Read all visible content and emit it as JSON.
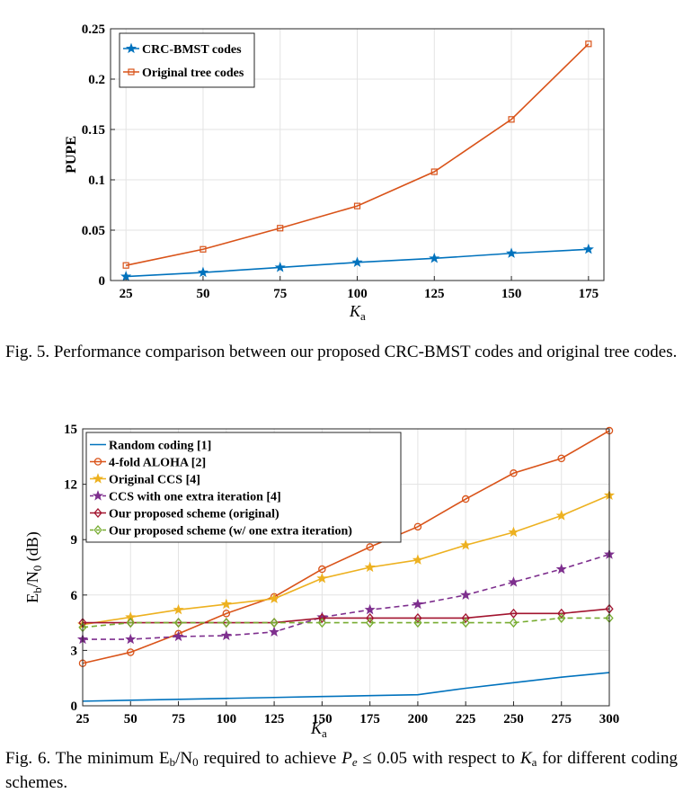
{
  "figure1": {
    "caption": "Fig. 5.   Performance comparison between our proposed CRC-BMST codes and original tree codes.",
    "chart_data": {
      "type": "line",
      "x": [
        25,
        50,
        75,
        100,
        125,
        150,
        175
      ],
      "xlabel": "K_a",
      "ylabel": "PUPE",
      "xlim": [
        20,
        180
      ],
      "ylim": [
        0,
        0.25
      ],
      "xticks": [
        "25",
        "50",
        "75",
        "100",
        "125",
        "150",
        "175"
      ],
      "yticks": [
        "0",
        "0.05",
        "0.1",
        "0.15",
        "0.2",
        "0.25"
      ],
      "grid": true,
      "legend_position": "top-left",
      "series": [
        {
          "name": "CRC-BMST codes",
          "color": "#0072BD",
          "marker": "star",
          "dashed": false,
          "values": [
            0.004,
            0.008,
            0.013,
            0.018,
            0.022,
            0.027,
            0.031
          ]
        },
        {
          "name": "Original tree codes",
          "color": "#D95319",
          "marker": "square",
          "dashed": false,
          "values": [
            0.015,
            0.031,
            0.052,
            0.074,
            0.108,
            0.16,
            0.235
          ]
        }
      ]
    }
  },
  "figure2": {
    "caption_prefix": "Fig. 6.   The minimum E",
    "caption_mid1": "/N",
    "caption_mid2": " required to achieve ",
    "caption_pe": "P",
    "caption_pe_sub": "e",
    "caption_mid3": " ≤ 0.05 with respect to ",
    "caption_k": "K",
    "caption_k_sub": "a",
    "caption_suffix": " for different coding schemes.",
    "sub_b": "b",
    "sub_0": "0",
    "chart_data": {
      "type": "line",
      "x": [
        25,
        50,
        75,
        100,
        125,
        150,
        175,
        200,
        225,
        250,
        275,
        300
      ],
      "xlabel": "K_a",
      "ylabel": "Eb/N0 (dB)",
      "xlim": [
        25,
        300
      ],
      "ylim": [
        0,
        15
      ],
      "xticks": [
        "25",
        "50",
        "75",
        "100",
        "125",
        "150",
        "175",
        "200",
        "225",
        "250",
        "275",
        "300"
      ],
      "yticks": [
        "0",
        "3",
        "6",
        "9",
        "12",
        "15"
      ],
      "grid": true,
      "legend_position": "top-left",
      "series": [
        {
          "name": "Random coding [1]",
          "color": "#0072BD",
          "marker": "none",
          "dashed": false,
          "values": [
            0.25,
            0.3,
            0.35,
            0.4,
            0.45,
            0.5,
            0.55,
            0.6,
            0.95,
            1.25,
            1.55,
            1.8
          ]
        },
        {
          "name": "4-fold ALOHA [2]",
          "color": "#D95319",
          "marker": "circle",
          "dashed": false,
          "values": [
            2.3,
            2.9,
            3.9,
            5.0,
            5.9,
            7.4,
            8.6,
            9.7,
            11.2,
            12.6,
            13.4,
            14.9
          ]
        },
        {
          "name": "Original CCS [4]",
          "color": "#EDB120",
          "marker": "star",
          "dashed": false,
          "values": [
            4.4,
            4.8,
            5.2,
            5.5,
            5.8,
            6.9,
            7.5,
            7.9,
            8.7,
            9.4,
            10.3,
            11.4
          ]
        },
        {
          "name": "CCS with one extra iteration [4]",
          "color": "#7E2F8E",
          "marker": "star",
          "dashed": true,
          "values": [
            3.6,
            3.6,
            3.75,
            3.8,
            4.0,
            4.8,
            5.2,
            5.5,
            6.0,
            6.7,
            7.4,
            8.2
          ]
        },
        {
          "name": "Our proposed scheme (original)",
          "color": "#A2142F",
          "marker": "diamond",
          "dashed": false,
          "values": [
            4.5,
            4.5,
            4.5,
            4.5,
            4.5,
            4.75,
            4.75,
            4.75,
            4.75,
            5.0,
            5.0,
            5.25
          ]
        },
        {
          "name": "Our proposed scheme (w/ one extra iteration)",
          "color": "#77AC30",
          "marker": "diamond",
          "dashed": true,
          "values": [
            4.25,
            4.5,
            4.5,
            4.5,
            4.5,
            4.5,
            4.5,
            4.5,
            4.5,
            4.5,
            4.75,
            4.75
          ]
        }
      ]
    }
  }
}
